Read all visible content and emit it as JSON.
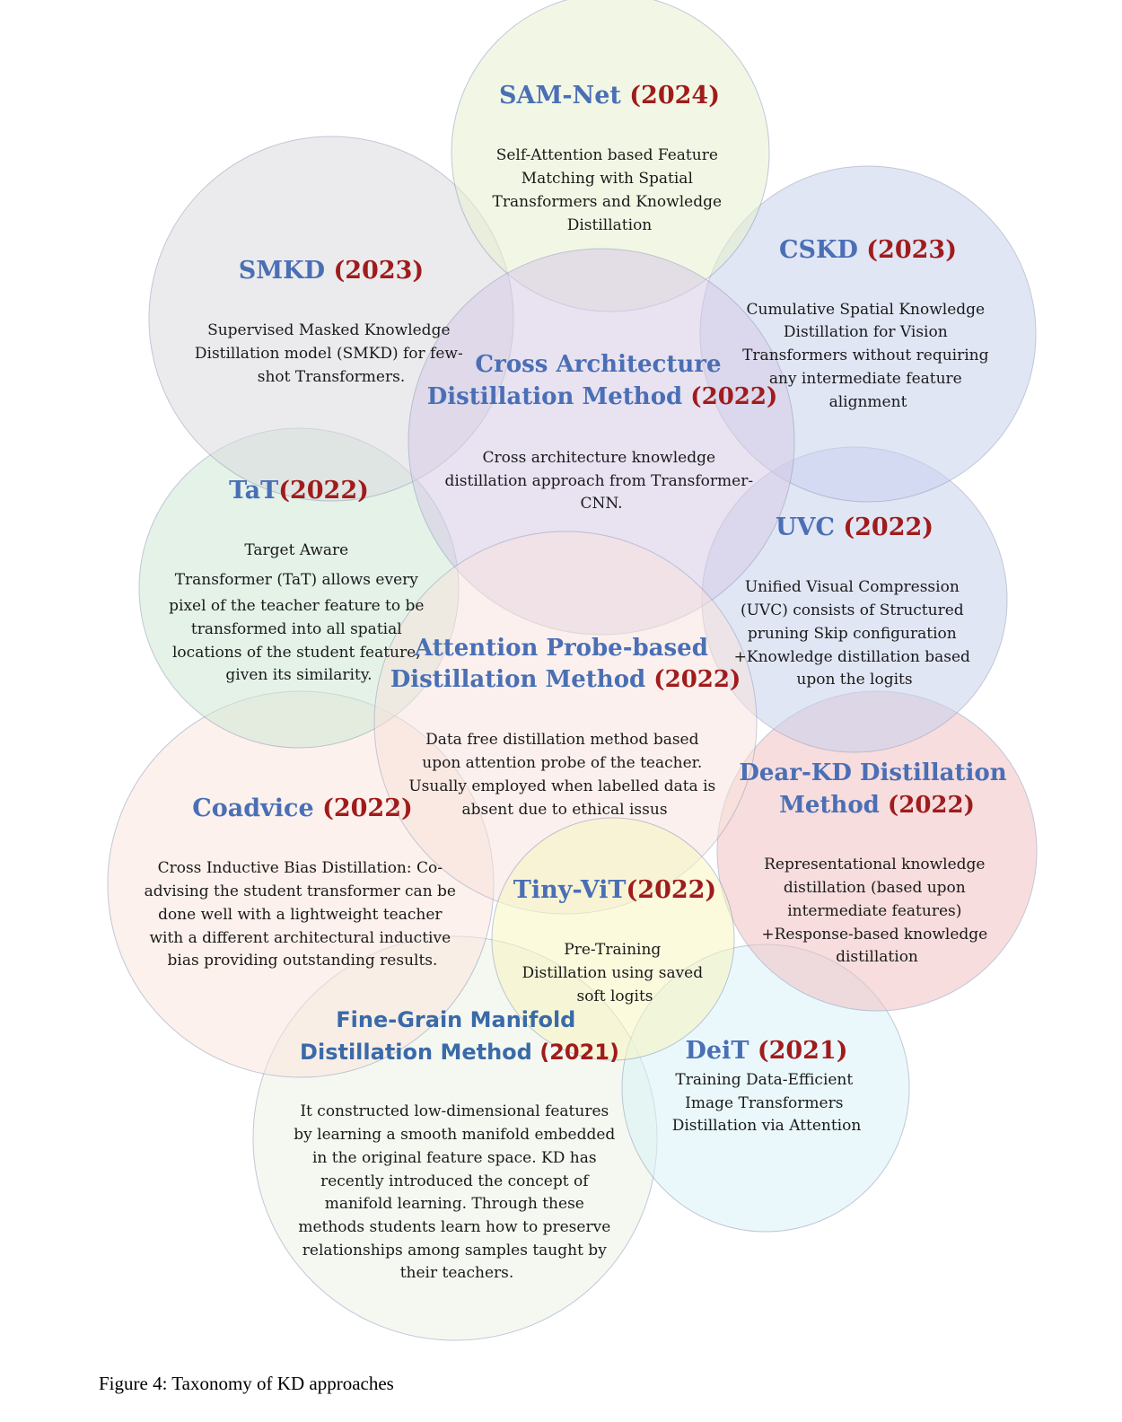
{
  "caption": "Figure 4: Taxonomy of KD approaches",
  "nodes": [
    {
      "key": "samnet",
      "name": "SAM-Net",
      "year": "(2024)",
      "fill": "#e8f1d0",
      "description": [
        "Self-Attention based Feature",
        "Matching with Spatial",
        "Transformers and Knowledge",
        "Distillation"
      ]
    },
    {
      "key": "smkd",
      "name": "SMKD",
      "year": "(2023)",
      "fill": "#dcdcdf",
      "description": [
        "Supervised Masked Knowledge",
        "Distillation model (SMKD) for few-",
        "shot Transformers."
      ]
    },
    {
      "key": "cskd",
      "name": "CSKD",
      "year": "(2023)",
      "fill": "#c9d2ee",
      "description": [
        "Cumulative Spatial Knowledge",
        "Distillation for Vision",
        "Transformers without requiring",
        "any intermediate feature",
        "alignment"
      ]
    },
    {
      "key": "cross",
      "name_line1": "Cross Architecture",
      "name_line2": "Distillation Method",
      "year": "(2022)",
      "fill": "#d7cbe6",
      "description": [
        "Cross architecture knowledge",
        "distillation approach from Transformer-",
        "CNN."
      ]
    },
    {
      "key": "tat",
      "name": "TaT",
      "year": "(2022)",
      "fill": "#cfe8d6",
      "description": [
        "Target Aware",
        "Transformer (TaT) allows every",
        "pixel of the teacher feature to be",
        "transformed into all spatial",
        "locations of the student feature,",
        "given its similarity."
      ]
    },
    {
      "key": "uvc",
      "name": "UVC",
      "year": "(2022)",
      "fill": "#c9d2ee",
      "description": [
        "Unified Visual Compression",
        "(UVC) consists of Structured",
        "pruning Skip configuration",
        "+Knowledge distillation based",
        "upon the logits"
      ]
    },
    {
      "key": "attention",
      "name_line1": "Attention Probe-based",
      "name_line2": "Distillation Method",
      "year": "(2022)",
      "fill": "#f9e3dc",
      "description": [
        "Data free distillation method based",
        "upon attention probe of the teacher.",
        "Usually employed when labelled data is",
        "absent due to ethical issus"
      ]
    },
    {
      "key": "coadvice",
      "name": "Coadvice",
      "year": "(2022)",
      "fill": "#fbe6de",
      "description": [
        "Cross Inductive Bias Distillation: Co-",
        "advising the student transformer can be",
        "done well with a lightweight teacher",
        "with a different architectural inductive",
        "bias providing outstanding results."
      ]
    },
    {
      "key": "dearkd",
      "name_line1": "Dear-KD Distillation",
      "name_line2": "Method",
      "year": "(2022)",
      "fill": "#f2c3c3",
      "description": [
        "Representational knowledge",
        "distillation (based upon",
        "intermediate features)",
        "+Response-based knowledge",
        "distillation"
      ]
    },
    {
      "key": "tinyvit",
      "name": "Tiny-ViT",
      "year": "(2022)",
      "fill": "#f8f6c2",
      "description": [
        "Pre-Training",
        "Distillation using saved",
        "soft logits"
      ]
    },
    {
      "key": "finegrain",
      "name_line1": "Fine-Grain Manifold",
      "name_line2": "Distillation Method",
      "year": "(2021)",
      "fill": "#eef3e6",
      "description": [
        "It constructed low-dimensional features",
        "by learning a smooth manifold embedded",
        "in the original feature space. KD has",
        "recently introduced the concept of",
        "manifold learning. Through these",
        "methods  students learn how to preserve",
        "relationships among samples taught by",
        "their teachers."
      ]
    },
    {
      "key": "deit",
      "name": "DeiT",
      "year": "(2021)",
      "fill": "#d9f4f8",
      "description": [
        "Training Data-Efficient",
        "Image Transformers",
        "Distillation via Attention"
      ]
    }
  ]
}
